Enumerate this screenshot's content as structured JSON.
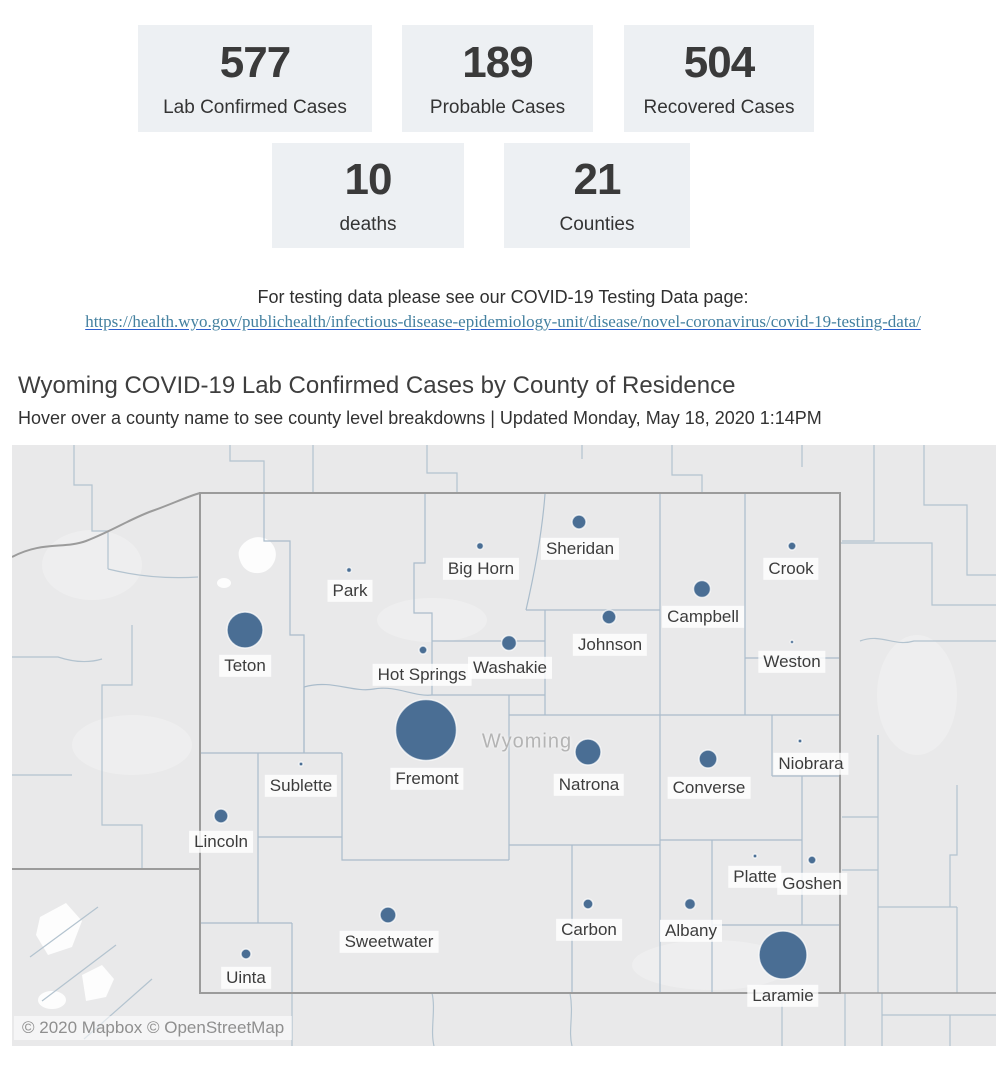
{
  "stats": [
    {
      "value": "577",
      "label": "Lab Confirmed Cases"
    },
    {
      "value": "189",
      "label": "Probable Cases"
    },
    {
      "value": "504",
      "label": "Recovered Cases"
    },
    {
      "value": "10",
      "label": "deaths"
    },
    {
      "value": "21",
      "label": "Counties"
    }
  ],
  "testing_note": {
    "text": "For testing data please see our COVID-19 Testing Data page:",
    "link_text": "https://health.wyo.gov/publichealth/infectious-disease-epidemiology-unit/disease/novel-coronavirus/covid-19-testing-data/"
  },
  "map_section": {
    "title": "Wyoming COVID-19 Lab Confirmed Cases by County of Residence",
    "subtitle": "Hover over a county name to see county level breakdowns | Updated Monday, May 18, 2020 1:14PM"
  },
  "map": {
    "state_label": "Wyoming",
    "attribution": "© 2020 Mapbox © OpenStreetMap",
    "colors": {
      "circle": "#4a6e94",
      "circle_halo": "rgba(255,255,255,0.7)",
      "land": "#e9e9ea",
      "county_line": "#b3c3cf",
      "state_line": "#9b9b9b",
      "label_text": "#3c3c3c",
      "label_bg": "rgba(255,255,255,0.82)",
      "state_label_color": "#b4b4b4"
    }
  },
  "chart_data": {
    "type": "scatter",
    "subtype": "proportional-symbol-map",
    "title": "Wyoming COVID-19 Lab Confirmed Cases by County of Residence",
    "encoding": "circle area is proportional to lab-confirmed cases per county; numeric case values are not labeled on screen, radius_px is as rendered",
    "counties": [
      {
        "name": "Park",
        "circle": [
          337,
          125
        ],
        "radius_px": 2.5,
        "label": [
          338,
          146
        ]
      },
      {
        "name": "Big Horn",
        "circle": [
          468,
          101
        ],
        "radius_px": 3.5,
        "label": [
          469,
          124
        ]
      },
      {
        "name": "Sheridan",
        "circle": [
          567,
          77
        ],
        "radius_px": 7,
        "label": [
          568,
          104
        ]
      },
      {
        "name": "Crook",
        "circle": [
          780,
          101
        ],
        "radius_px": 4,
        "label": [
          779,
          124
        ]
      },
      {
        "name": "Campbell",
        "circle": [
          690,
          144
        ],
        "radius_px": 8.5,
        "label": [
          691,
          172
        ]
      },
      {
        "name": "Johnson",
        "circle": [
          597,
          172
        ],
        "radius_px": 7,
        "label": [
          598,
          200
        ]
      },
      {
        "name": "Weston",
        "circle": [
          780,
          197
        ],
        "radius_px": 1.8,
        "label": [
          780,
          217
        ]
      },
      {
        "name": "Teton",
        "circle": [
          233,
          185
        ],
        "radius_px": 18,
        "label": [
          233,
          221
        ]
      },
      {
        "name": "Hot Springs",
        "circle": [
          411,
          205
        ],
        "radius_px": 4,
        "label": [
          410,
          230
        ]
      },
      {
        "name": "Washakie",
        "circle": [
          497,
          198
        ],
        "radius_px": 7.5,
        "label": [
          498,
          223
        ]
      },
      {
        "name": "Fremont",
        "circle": [
          414,
          285
        ],
        "radius_px": 30.5,
        "label": [
          415,
          334
        ]
      },
      {
        "name": "Natrona",
        "circle": [
          576,
          307
        ],
        "radius_px": 13,
        "label": [
          577,
          340
        ]
      },
      {
        "name": "Converse",
        "circle": [
          696,
          314
        ],
        "radius_px": 9,
        "label": [
          697,
          343
        ]
      },
      {
        "name": "Niobrara",
        "circle": [
          788,
          296
        ],
        "radius_px": 2,
        "label": [
          799,
          319
        ]
      },
      {
        "name": "Sublette",
        "circle": [
          289,
          319
        ],
        "radius_px": 2,
        "label": [
          289,
          341
        ]
      },
      {
        "name": "Lincoln",
        "circle": [
          209,
          371
        ],
        "radius_px": 7,
        "label": [
          209,
          397
        ]
      },
      {
        "name": "Platte",
        "circle": [
          743,
          411
        ],
        "radius_px": 2,
        "label": [
          743,
          432
        ]
      },
      {
        "name": "Goshen",
        "circle": [
          800,
          415
        ],
        "radius_px": 4,
        "label": [
          800,
          439
        ]
      },
      {
        "name": "Carbon",
        "circle": [
          576,
          459
        ],
        "radius_px": 5,
        "label": [
          577,
          485
        ]
      },
      {
        "name": "Albany",
        "circle": [
          678,
          459
        ],
        "radius_px": 5.5,
        "label": [
          679,
          486
        ]
      },
      {
        "name": "Sweetwater",
        "circle": [
          376,
          470
        ],
        "radius_px": 8,
        "label": [
          377,
          497
        ]
      },
      {
        "name": "Uinta",
        "circle": [
          234,
          509
        ],
        "radius_px": 5,
        "label": [
          234,
          533
        ]
      },
      {
        "name": "Laramie",
        "circle": [
          771,
          510
        ],
        "radius_px": 24,
        "label": [
          771,
          551
        ]
      }
    ]
  }
}
